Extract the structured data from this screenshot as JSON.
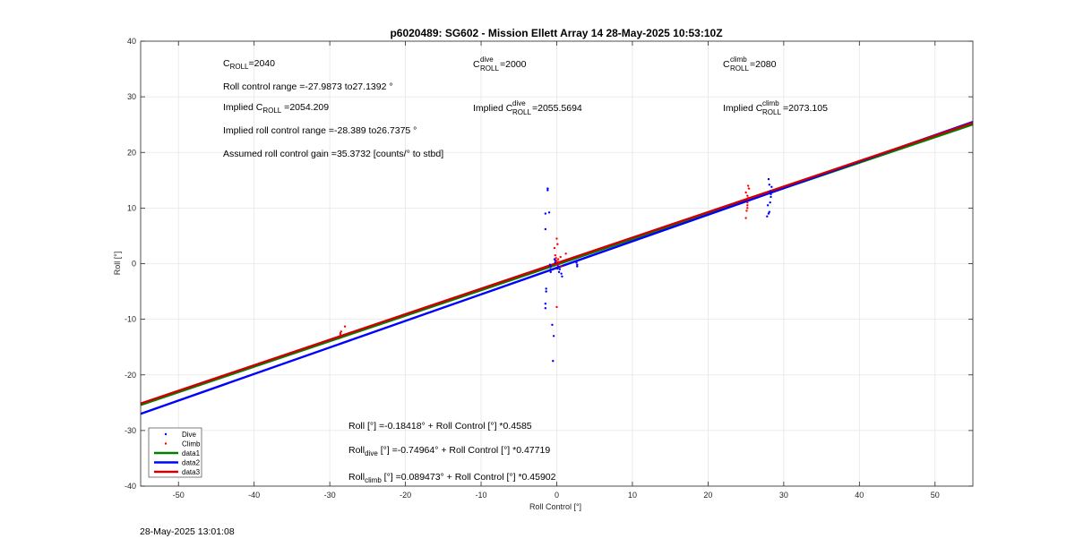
{
  "chart_data": {
    "type": "scatter",
    "title": "p6020489: SG602 - Mission Ellett Array 14 28-May-2025 10:53:10Z",
    "xlabel": "Roll Control [°]",
    "ylabel": "Roll [°]",
    "xlim": [
      -55,
      55
    ],
    "ylim": [
      -40,
      40
    ],
    "xticks": [
      -50,
      -40,
      -30,
      -20,
      -10,
      0,
      10,
      20,
      30,
      40,
      50
    ],
    "yticks": [
      -40,
      -30,
      -20,
      -10,
      0,
      10,
      20,
      30,
      40
    ],
    "xtick_labels": [
      "-50",
      "-40",
      "-30",
      "-20",
      "-10",
      "0",
      "10",
      "20",
      "30",
      "40",
      "50"
    ],
    "ytick_labels": [
      "-40",
      "-30",
      "-20",
      "-10",
      "0",
      "10",
      "20",
      "30",
      "40"
    ],
    "grid": true,
    "legend_position": "bottom-left",
    "series": [
      {
        "name": "Dive",
        "kind": "points",
        "color": "#0000ff",
        "x": [
          -0.8,
          -0.8,
          -0.8,
          -1.2,
          -1.2,
          -1.0,
          -1.5,
          -1.5,
          -1.4,
          -1.4,
          -1.5,
          -1.5,
          -0.6,
          -0.4,
          -0.5,
          -0.3,
          -0.2,
          0.2,
          0.4,
          0.6,
          0.7,
          -0.9,
          -0.2,
          0.1,
          0.3,
          2.6,
          2.7,
          2.7,
          27.8,
          28.0,
          28.1,
          28.2,
          28.3,
          28.3,
          28.2,
          28.4,
          28.1,
          28.0,
          27.9
        ],
        "y": [
          -1.5,
          -1.0,
          -0.5,
          13.5,
          13.2,
          9.2,
          9.0,
          6.2,
          -4.5,
          -5.0,
          -7.2,
          -8.0,
          -11.0,
          -13.0,
          -17.5,
          0.8,
          0.2,
          -0.5,
          -1.0,
          -1.8,
          -2.3,
          -0.2,
          0.6,
          -0.9,
          -1.5,
          0.2,
          -0.2,
          -0.5,
          8.5,
          9.0,
          9.3,
          11.0,
          12.0,
          12.5,
          13.0,
          13.8,
          14.2,
          15.2,
          10.5
        ]
      },
      {
        "name": "Climb",
        "kind": "points",
        "color": "#ff0000",
        "x": [
          -28.6,
          -28.6,
          -28.5,
          -28.0,
          -0.2,
          -0.1,
          0.0,
          0.1,
          0.2,
          0.3,
          0.5,
          0.6,
          -0.3,
          0.0,
          0.1,
          1.2,
          0.0,
          25.0,
          25.1,
          25.2,
          25.2,
          25.3,
          25.2,
          25.0,
          25.4,
          25.3,
          25.2
        ],
        "y": [
          -12.8,
          -12.5,
          -12.2,
          -11.3,
          1.5,
          1.0,
          0.5,
          -0.2,
          0.8,
          0.3,
          1.2,
          -0.5,
          2.8,
          4.5,
          3.5,
          1.8,
          -7.8,
          8.2,
          9.5,
          10.0,
          11.0,
          11.8,
          12.2,
          12.8,
          13.5,
          14.0,
          10.5
        ]
      },
      {
        "name": "data1",
        "kind": "fit",
        "color": "#008000",
        "intercept": -0.18418,
        "slope": 0.4585
      },
      {
        "name": "data2",
        "kind": "fit",
        "color": "#0000ff",
        "intercept": -0.74964,
        "slope": 0.47719
      },
      {
        "name": "data3",
        "kind": "fit",
        "color": "#cc0000",
        "intercept": 0.089473,
        "slope": 0.45902
      }
    ]
  },
  "annotations": {
    "c_roll": {
      "base": "C",
      "sub": "ROLL",
      "value": "=2040"
    },
    "roll_range": "Roll control range =-27.9873 to27.1392 °",
    "implied_c_roll": {
      "pre": "Implied C",
      "sub": "ROLL",
      "value": " =2054.209"
    },
    "implied_range": "Implied roll control range =-28.389 to26.7375 °",
    "gain": "Assumed roll control gain =35.3732 [counts/° to stbd]",
    "c_roll_dive": {
      "base": "C",
      "sup": "dive",
      "sub": "ROLL",
      "value": " =2000"
    },
    "implied_c_dive": {
      "pre": "Implied C",
      "sup": "dive",
      "sub": "ROLL",
      "value": " =2055.5694"
    },
    "c_roll_climb": {
      "base": "C",
      "sup": "climb",
      "sub": "ROLL",
      "value": " =2080"
    },
    "implied_c_climb": {
      "pre": "Implied C",
      "sup": "climb",
      "sub": "ROLL",
      "value": " =2073.105"
    },
    "eq_all": "Roll [°] =-0.18418° + Roll Control [°] *0.4585",
    "eq_dive": {
      "pre": "Roll",
      "sub": "dive",
      "post": " [°] =-0.74964° + Roll Control [°] *0.47719"
    },
    "eq_climb": {
      "pre": "Roll",
      "sub": "climb",
      "post": " [°] =0.089473° + Roll Control [°] *0.45902"
    }
  },
  "timestamp": "28-May-2025 13:01:08"
}
